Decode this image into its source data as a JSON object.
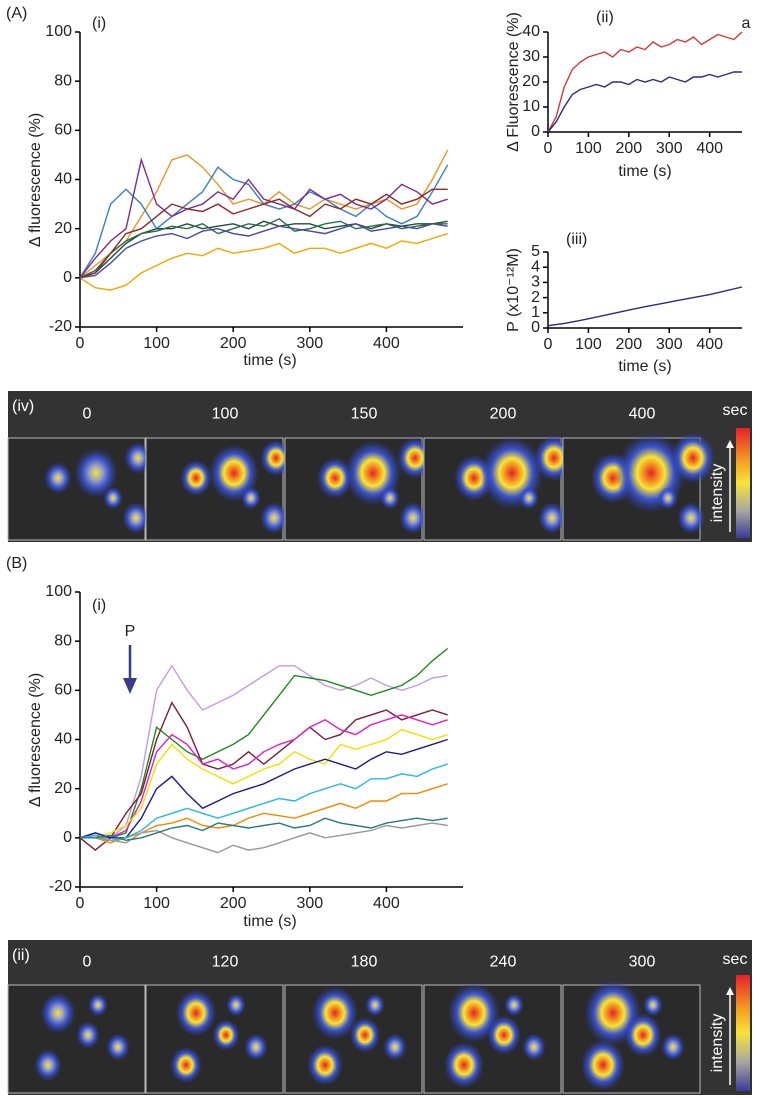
{
  "panels": [
    "(A)",
    "(B)"
  ],
  "chart_data": [
    {
      "type": "line",
      "panel_label": "(i)",
      "x_label": "time (s)",
      "y_label": "Δ fluorescence (%)",
      "xlim": [
        0,
        500
      ],
      "ylim": [
        -20,
        100
      ],
      "xticks": [
        0,
        100,
        200,
        300,
        400
      ],
      "yticks": [
        -20,
        0,
        20,
        40,
        60,
        80,
        100
      ],
      "x": [
        0,
        20,
        40,
        60,
        80,
        100,
        120,
        140,
        160,
        180,
        200,
        220,
        240,
        260,
        280,
        300,
        320,
        340,
        360,
        380,
        400,
        420,
        440,
        460,
        480
      ],
      "series": [
        {
          "color": "#e8962c",
          "values": [
            0,
            5,
            10,
            15,
            25,
            35,
            48,
            50,
            45,
            38,
            30,
            32,
            30,
            35,
            30,
            28,
            32,
            30,
            28,
            30,
            32,
            28,
            30,
            40,
            52
          ]
        },
        {
          "color": "#3a7fc0",
          "values": [
            0,
            10,
            30,
            36,
            30,
            20,
            25,
            30,
            35,
            45,
            40,
            38,
            30,
            28,
            30,
            35,
            32,
            28,
            25,
            30,
            25,
            22,
            25,
            35,
            46
          ]
        },
        {
          "color": "#7b2d8e",
          "values": [
            0,
            8,
            15,
            20,
            48,
            30,
            25,
            28,
            30,
            35,
            32,
            40,
            32,
            30,
            28,
            36,
            32,
            34,
            30,
            28,
            32,
            38,
            35,
            30,
            32
          ]
        },
        {
          "color": "#f0a800",
          "values": [
            0,
            -4,
            -5,
            -3,
            2,
            5,
            8,
            10,
            9,
            12,
            10,
            11,
            12,
            14,
            10,
            12,
            12,
            10,
            12,
            14,
            12,
            15,
            14,
            16,
            18
          ]
        },
        {
          "color": "#1f4e3d",
          "values": [
            0,
            2,
            8,
            14,
            18,
            20,
            20,
            22,
            20,
            21,
            22,
            20,
            23,
            21,
            22,
            22,
            20,
            21,
            22,
            20,
            22,
            21,
            22,
            22,
            23
          ]
        },
        {
          "color": "#2c6e49",
          "values": [
            0,
            3,
            10,
            15,
            18,
            19,
            21,
            20,
            22,
            18,
            20,
            22,
            21,
            24,
            19,
            20,
            22,
            23,
            20,
            21,
            22,
            20,
            21,
            22,
            22
          ]
        },
        {
          "color": "#8b2b2b",
          "values": [
            0,
            2,
            10,
            18,
            20,
            25,
            30,
            28,
            27,
            30,
            26,
            28,
            30,
            32,
            28,
            25,
            30,
            28,
            32,
            30,
            34,
            30,
            32,
            36,
            36
          ]
        },
        {
          "color": "#4a4a9a",
          "values": [
            0,
            1,
            6,
            12,
            15,
            17,
            18,
            16,
            19,
            20,
            18,
            17,
            19,
            21,
            20,
            19,
            18,
            20,
            22,
            19,
            20,
            21,
            20,
            22,
            21
          ]
        }
      ]
    },
    {
      "type": "line",
      "panel_label": "(ii)",
      "annotation": "a",
      "x_label": "time (s)",
      "y_label": "Δ Fluorescence (%)",
      "xlim": [
        0,
        480
      ],
      "ylim": [
        0,
        40
      ],
      "xticks": [
        0,
        100,
        200,
        300,
        400
      ],
      "yticks": [
        0,
        10,
        20,
        30,
        40
      ],
      "x": [
        0,
        20,
        40,
        60,
        80,
        100,
        120,
        140,
        160,
        180,
        200,
        220,
        240,
        260,
        280,
        300,
        320,
        340,
        360,
        380,
        400,
        420,
        440,
        460,
        480
      ],
      "series": [
        {
          "color": "#d0393b",
          "values": [
            0,
            6,
            18,
            25,
            28,
            30,
            31,
            32,
            30,
            33,
            32,
            34,
            33,
            36,
            34,
            35,
            37,
            36,
            38,
            35,
            37,
            39,
            38,
            37,
            40
          ]
        },
        {
          "color": "#2b2d7c",
          "values": [
            0,
            4,
            10,
            15,
            17,
            18,
            19,
            18,
            20,
            20,
            19,
            21,
            20,
            21,
            20,
            22,
            21,
            20,
            22,
            22,
            23,
            22,
            23,
            24,
            24
          ]
        }
      ]
    },
    {
      "type": "line",
      "panel_label": "(iii)",
      "x_label": "time (s)",
      "y_label": "P (x10⁻¹²M)",
      "xlim": [
        0,
        480
      ],
      "ylim": [
        0,
        5
      ],
      "xticks": [
        0,
        100,
        200,
        300,
        400
      ],
      "yticks": [
        0,
        1,
        2,
        3,
        4,
        5
      ],
      "x": [
        0,
        40,
        80,
        120,
        160,
        200,
        240,
        280,
        320,
        360,
        400,
        440,
        480
      ],
      "series": [
        {
          "color": "#2b2d7c",
          "values": [
            0.15,
            0.3,
            0.5,
            0.72,
            0.95,
            1.18,
            1.4,
            1.6,
            1.8,
            2.0,
            2.2,
            2.45,
            2.7
          ]
        }
      ]
    },
    {
      "type": "line",
      "panel_label": "(i)",
      "annotation": "P",
      "x_label": "time (s)",
      "y_label": "Δ fluorescence (%)",
      "xlim": [
        0,
        500
      ],
      "ylim": [
        -20,
        100
      ],
      "xticks": [
        0,
        100,
        200,
        300,
        400
      ],
      "yticks": [
        -20,
        0,
        20,
        40,
        60,
        80,
        100
      ],
      "x": [
        0,
        20,
        40,
        60,
        80,
        100,
        120,
        140,
        160,
        180,
        200,
        220,
        240,
        260,
        280,
        300,
        320,
        340,
        360,
        380,
        400,
        420,
        440,
        460,
        480
      ],
      "series": [
        {
          "color": "#c39ae8",
          "values": [
            0,
            2,
            0,
            5,
            25,
            60,
            70,
            60,
            52,
            55,
            58,
            62,
            66,
            70,
            70,
            66,
            62,
            60,
            62,
            65,
            62,
            60,
            62,
            65,
            66
          ]
        },
        {
          "color": "#1e8a1e",
          "values": [
            0,
            1,
            0,
            2,
            20,
            45,
            40,
            35,
            32,
            35,
            38,
            42,
            50,
            58,
            66,
            65,
            64,
            62,
            60,
            58,
            60,
            62,
            66,
            72,
            77
          ]
        },
        {
          "color": "#7a1e3a",
          "values": [
            0,
            -5,
            0,
            10,
            18,
            40,
            55,
            45,
            30,
            28,
            30,
            35,
            30,
            35,
            40,
            45,
            40,
            42,
            48,
            50,
            52,
            48,
            50,
            52,
            50
          ]
        },
        {
          "color": "#e020c0",
          "values": [
            0,
            1,
            0,
            3,
            15,
            35,
            42,
            38,
            30,
            32,
            28,
            30,
            35,
            38,
            40,
            45,
            48,
            44,
            42,
            46,
            48,
            50,
            48,
            46,
            48
          ]
        },
        {
          "color": "#f0e000",
          "values": [
            0,
            0,
            2,
            5,
            12,
            30,
            38,
            32,
            28,
            25,
            22,
            25,
            28,
            30,
            35,
            32,
            30,
            38,
            36,
            38,
            40,
            44,
            42,
            40,
            42
          ]
        },
        {
          "color": "#1a1a8a",
          "values": [
            0,
            2,
            0,
            0,
            8,
            20,
            25,
            18,
            12,
            15,
            18,
            20,
            22,
            25,
            28,
            30,
            32,
            30,
            28,
            32,
            35,
            34,
            36,
            38,
            40
          ]
        },
        {
          "color": "#f08c00",
          "values": [
            0,
            0,
            -2,
            0,
            2,
            5,
            6,
            8,
            5,
            4,
            5,
            8,
            10,
            9,
            8,
            10,
            12,
            14,
            12,
            15,
            15,
            18,
            18,
            20,
            22
          ]
        },
        {
          "color": "#28b8e0",
          "values": [
            0,
            1,
            -1,
            0,
            3,
            8,
            10,
            12,
            10,
            8,
            10,
            12,
            14,
            16,
            15,
            18,
            20,
            22,
            20,
            24,
            24,
            26,
            25,
            28,
            30
          ]
        },
        {
          "color": "#999999",
          "values": [
            0,
            0,
            -1,
            -2,
            2,
            3,
            0,
            -2,
            -4,
            -6,
            -3,
            -5,
            -4,
            -2,
            0,
            2,
            0,
            1,
            2,
            3,
            5,
            4,
            5,
            6,
            5
          ]
        },
        {
          "color": "#2a7a7a",
          "values": [
            0,
            0,
            1,
            -1,
            0,
            2,
            4,
            5,
            3,
            6,
            5,
            4,
            5,
            6,
            4,
            5,
            8,
            6,
            5,
            4,
            6,
            7,
            8,
            7,
            8
          ]
        }
      ]
    }
  ],
  "image_strips": [
    {
      "label": "(iv)",
      "times": [
        0,
        100,
        150,
        200,
        400
      ],
      "unit": "sec",
      "scale_label": "intensity"
    },
    {
      "label": "(ii)",
      "times": [
        0,
        120,
        180,
        240,
        300
      ],
      "unit": "sec",
      "scale_label": "intensity"
    }
  ]
}
